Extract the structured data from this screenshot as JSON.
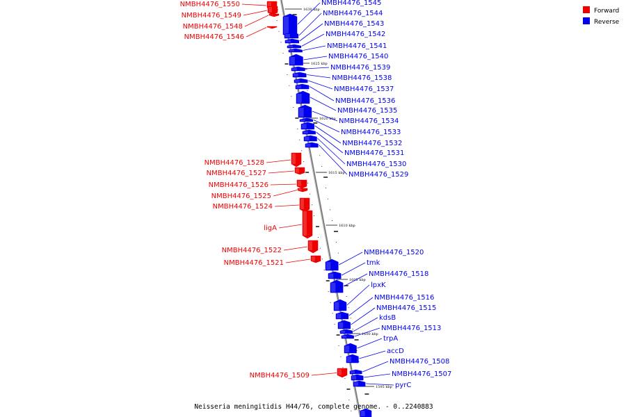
{
  "colors": {
    "forward": "#ee0000",
    "reverse": "#0000ee",
    "axis": "#808080",
    "tick": "#000000"
  },
  "legend": {
    "forward_label": "Forward",
    "reverse_label": "Reverse"
  },
  "caption": "Neisseria meningitidis H44/76, complete genome. - 0..2240883",
  "scale_labels": [
    "1630 kbp",
    "1625 kbp",
    "1620 kbp",
    "1615 kbp",
    "1610 kbp",
    "1605 kbp",
    "1600 kbp",
    "1595 kbp"
  ],
  "forward_genes": [
    "NMBH4476_1550",
    "NMBH4476_1549",
    "NMBH4476_1548",
    "NMBH4476_1546",
    "NMBH4476_1528",
    "NMBH4476_1527",
    "NMBH4476_1526",
    "NMBH4476_1525",
    "NMBH4476_1524",
    "ligA",
    "NMBH4476_1522",
    "NMBH4476_1521",
    "NMBH4476_1509"
  ],
  "reverse_genes": [
    "NMBH4476_1545",
    "NMBH4476_1544",
    "NMBH4476_1543",
    "NMBH4476_1542",
    "NMBH4476_1541",
    "NMBH4476_1540",
    "NMBH4476_1539",
    "NMBH4476_1538",
    "NMBH4476_1537",
    "NMBH4476_1536",
    "NMBH4476_1535",
    "NMBH4476_1534",
    "NMBH4476_1533",
    "NMBH4476_1532",
    "NMBH4476_1531",
    "NMBH4476_1530",
    "NMBH4476_1529",
    "NMBH4476_1520",
    "tmk",
    "NMBH4476_1518",
    "lpxK",
    "NMBH4476_1516",
    "NMBH4476_1515",
    "kdsB",
    "NMBH4476_1513",
    "trpA",
    "accD",
    "NMBH4476_1508",
    "NMBH4476_1507",
    "pyrC"
  ]
}
